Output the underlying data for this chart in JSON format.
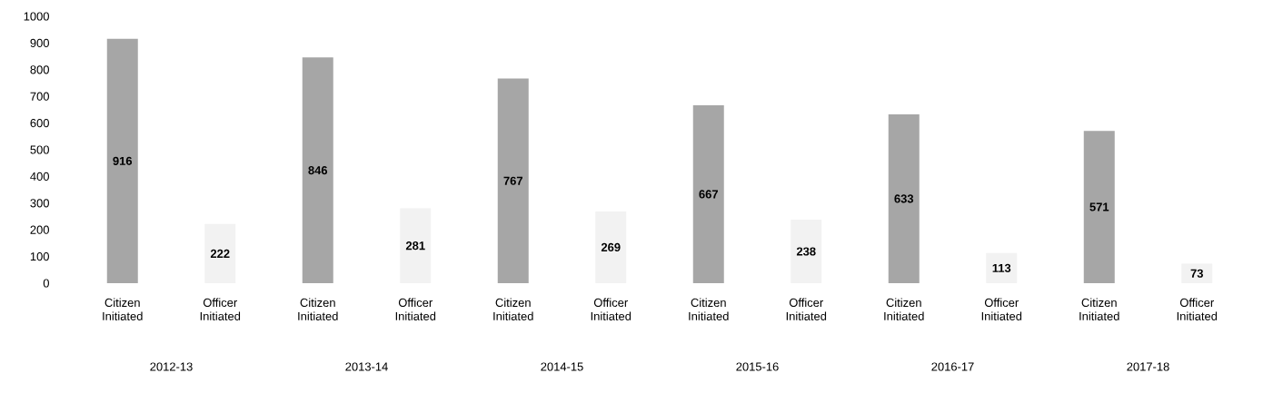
{
  "chart_data": {
    "type": "bar",
    "categories": [
      "Citizen Initiated",
      "Officer Initiated",
      "Citizen Initiated",
      "Officer Initiated",
      "Citizen Initiated",
      "Officer Initiated",
      "Citizen Initiated",
      "Officer Initiated",
      "Citizen Initiated",
      "Officer Initiated",
      "Citizen Initiated",
      "Officer Initiated"
    ],
    "values": [
      916,
      222,
      846,
      281,
      767,
      269,
      667,
      238,
      633,
      113,
      571,
      73
    ],
    "colors": [
      "#a6a6a6",
      "#f2f2f2",
      "#a6a6a6",
      "#f2f2f2",
      "#a6a6a6",
      "#f2f2f2",
      "#a6a6a6",
      "#f2f2f2",
      "#a6a6a6",
      "#f2f2f2",
      "#a6a6a6",
      "#f2f2f2"
    ],
    "data_labels": true,
    "ylim": [
      0,
      1000
    ],
    "yticks": [
      0,
      100,
      200,
      300,
      400,
      500,
      600,
      700,
      800,
      900,
      1000
    ],
    "annotations": [
      "2012-13",
      "2013-14",
      "2014-15",
      "2015-16",
      "2016-17",
      "2017-18"
    ]
  }
}
